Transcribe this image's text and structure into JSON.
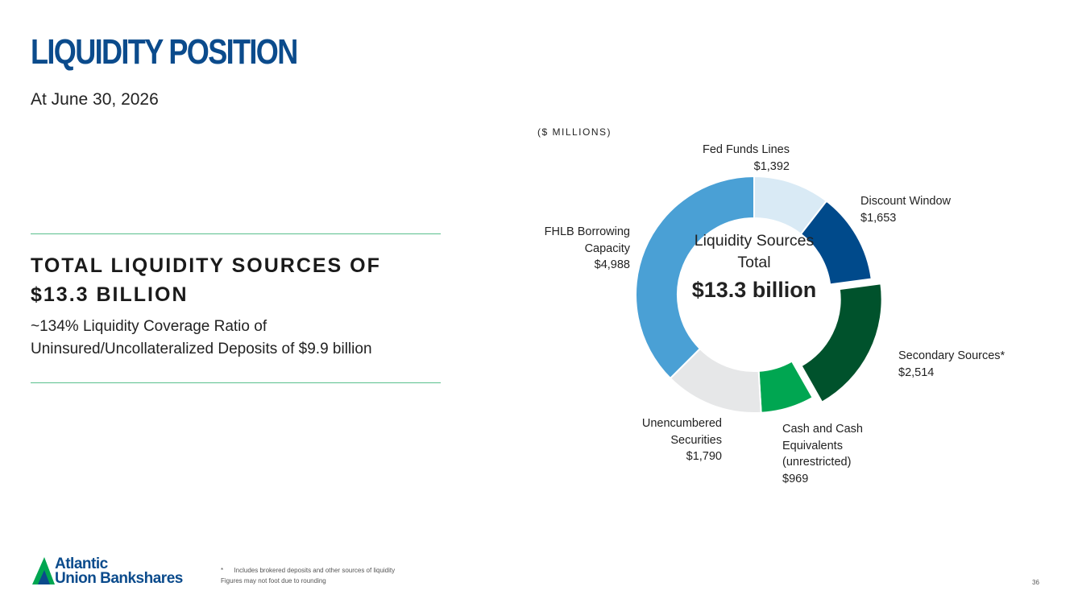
{
  "header": {
    "title": "LIQUIDITY POSITION",
    "subtitle": "At June 30, 2026"
  },
  "summary": {
    "headline": "TOTAL LIQUIDITY SOURCES OF $13.3 BILLION",
    "body": "~134% Liquidity Coverage Ratio of Uninsured/Uncollateralized Deposits of $9.9 billion"
  },
  "chart_data": {
    "type": "donut",
    "unit_label": "($ MILLIONS)",
    "center_label": "Liquidity Sources Total",
    "center_value": "$13.3 billion",
    "categories": [
      "Fed Funds Lines",
      "Discount Window",
      "Secondary Sources*",
      "Cash and Cash Equivalents (unrestricted)",
      "Unencumbered Securities",
      "FHLB Borrowing Capacity"
    ],
    "values": [
      1392,
      1653,
      2514,
      969,
      1790,
      4988
    ],
    "value_labels": [
      "$1,392",
      "$1,653",
      "$2,514",
      "$969",
      "$1,790",
      "$4,988"
    ],
    "colors": [
      "#d9eaf5",
      "#004a8b",
      "#00522c",
      "#00a651",
      "#e6e7e8",
      "#4aa0d5"
    ]
  },
  "footer": {
    "footnote": "*      Includes brokered deposits and other sources of liquidity",
    "note": "Figures may not foot due to rounding",
    "logo_line1": "Atlantic",
    "logo_line2": "Union Bankshares",
    "page_number": "36"
  }
}
